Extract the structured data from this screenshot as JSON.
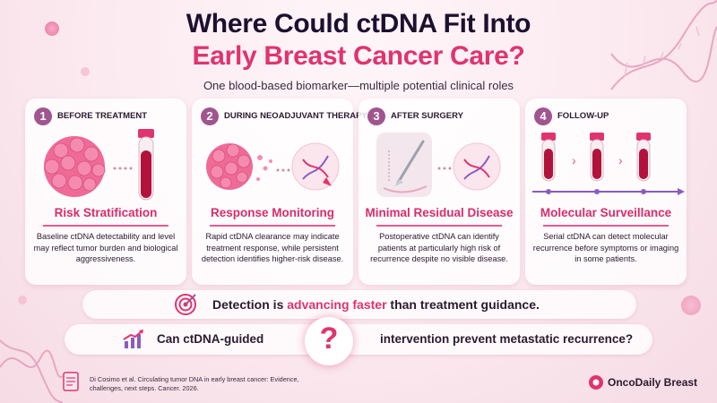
{
  "header": {
    "title_line1": "Where Could ctDNA Fit Into",
    "title_line2": "Early Breast Cancer Care?",
    "subtitle": "One blood-based biomarker—multiple potential clinical roles"
  },
  "cards": [
    {
      "number": "1",
      "stage": "BEFORE TREATMENT",
      "role": "Risk Stratification",
      "description": "Baseline ctDNA detectability and level may reflect tumor burden and biological aggressiveness."
    },
    {
      "number": "2",
      "stage": "DURING NEOADJUVANT THERAPY",
      "role": "Response Monitoring",
      "description": "Rapid ctDNA clearance may indicate treatment response, while persistent detection identifies higher-risk disease."
    },
    {
      "number": "3",
      "stage": "AFTER SURGERY",
      "role": "Minimal Residual Disease",
      "description": "Postoperative ctDNA can identify patients at particularly high risk of recurrence despite no visible disease."
    },
    {
      "number": "4",
      "stage": "FOLLOW-UP",
      "role": "Molecular Surveillance",
      "description": "Serial ctDNA can detect molecular recurrence before symptoms or imaging in some patients."
    }
  ],
  "banner": {
    "text_before": "Detection is",
    "highlight": "advancing faster",
    "text_after": "than treatment guidance."
  },
  "question": {
    "left": "Can ctDNA-guided",
    "mark": "?",
    "right": "intervention prevent metastatic recurrence?"
  },
  "reference": "Di Cosimo et al. Circulating tumor DNA in early breast cancer: Evidence, challenges, next steps. Cancer. 2026.",
  "brand": "OncoDaily Breast",
  "colors": {
    "accent": "#e0336f",
    "title_dark": "#1c1030",
    "number_badge": "#a0558f",
    "blood": "#b3123a",
    "tumor": "#ef6b95"
  },
  "icons": [
    "tumor-icon",
    "blood-tube-icon",
    "dna-icon",
    "scalpel-icon",
    "target-icon",
    "growth-chart-icon",
    "document-icon",
    "brand-logo-icon"
  ]
}
